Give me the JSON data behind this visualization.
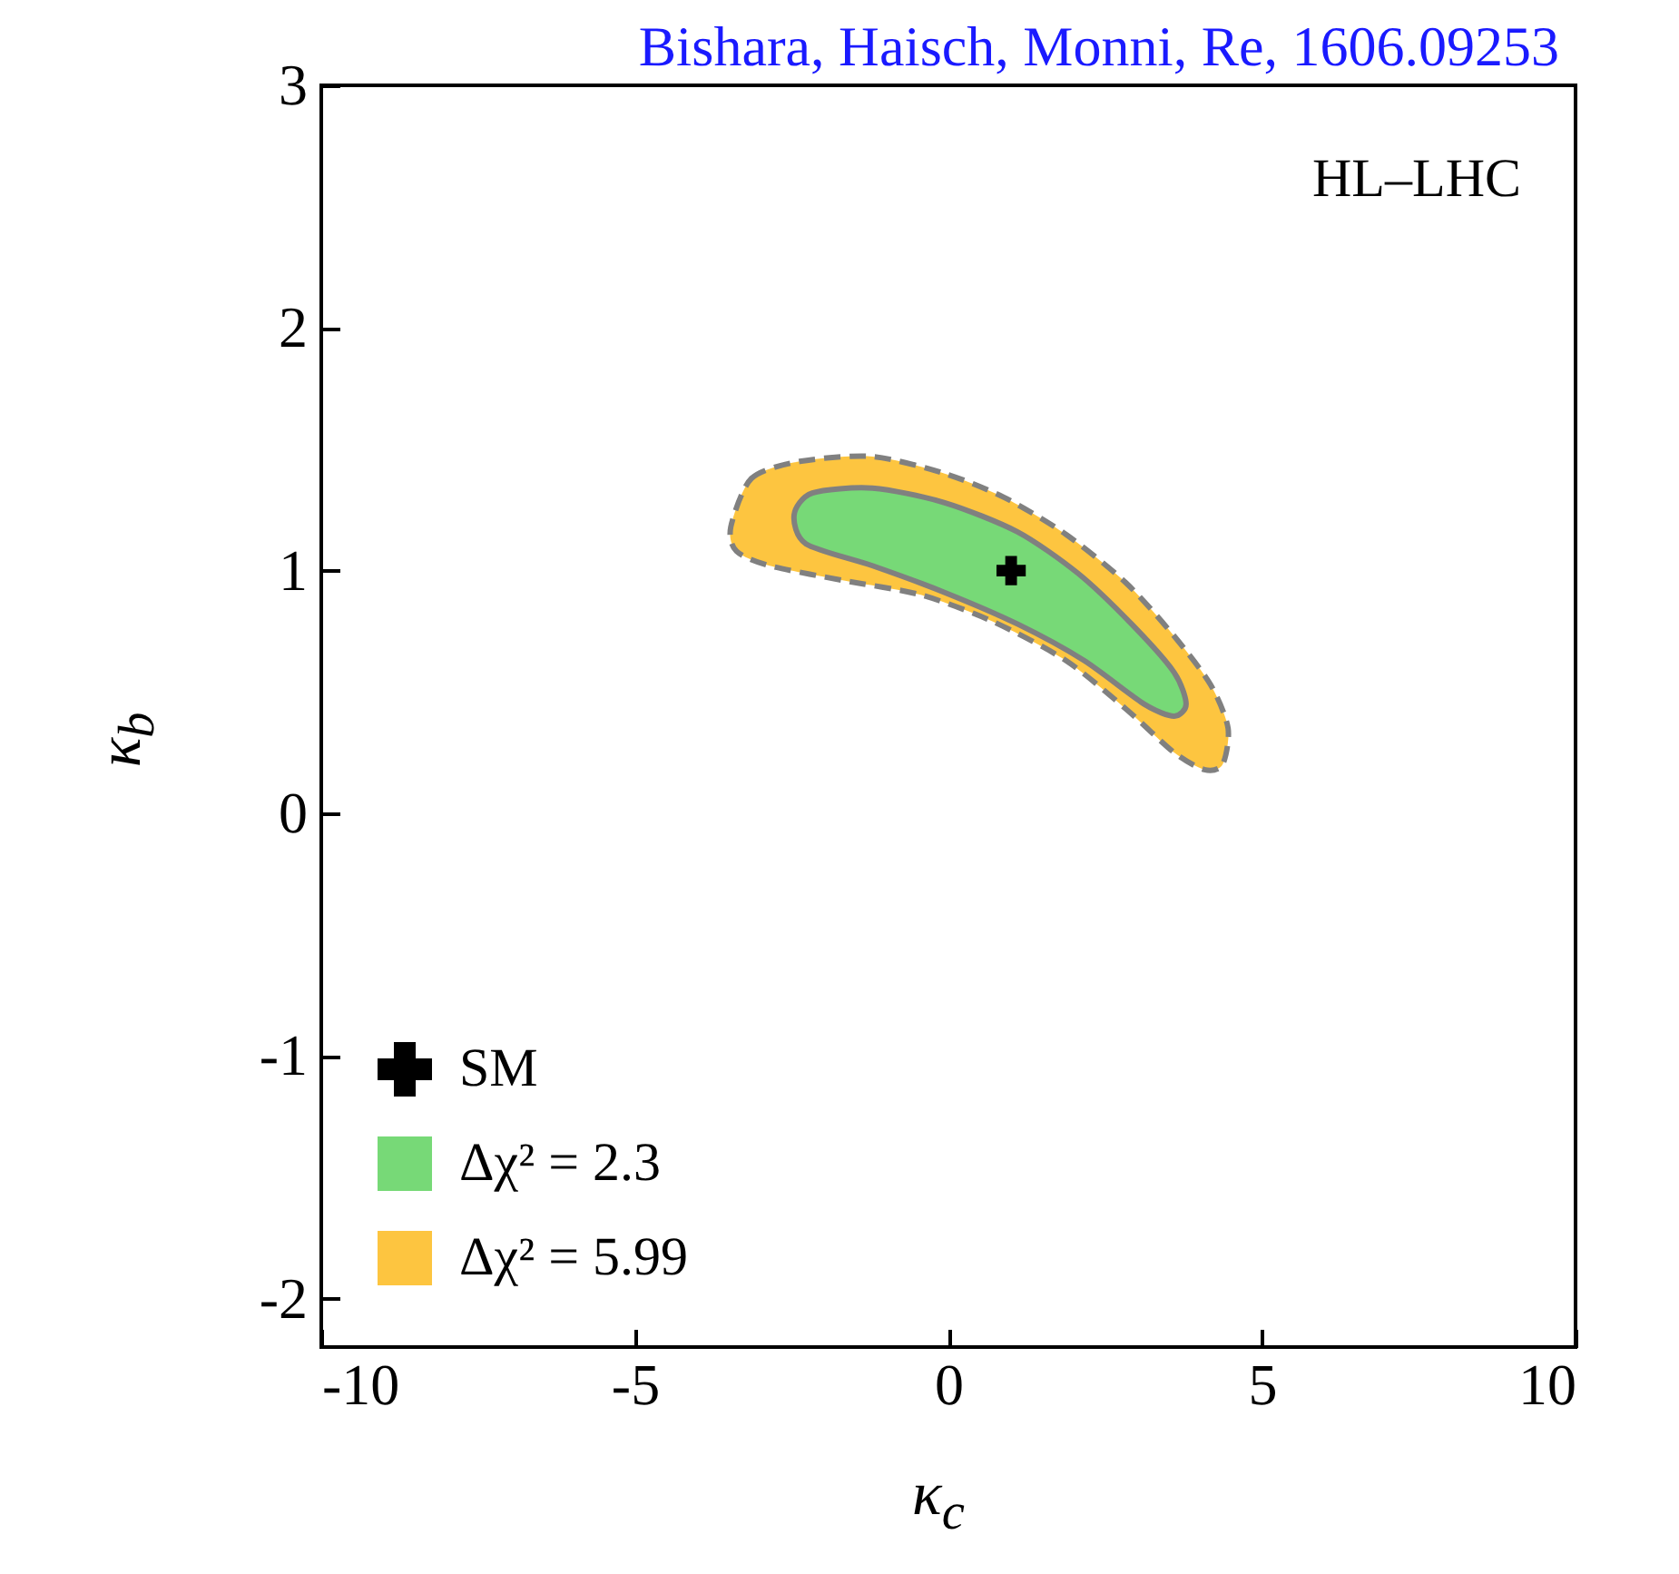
{
  "chart_data": {
    "type": "area",
    "xlabel": "κ$_{c}$",
    "ylabel": "κ$_{b}$",
    "annotations": [
      "HL–LHC",
      "Bishara, Haisch, Monni, Re, 1606.09253"
    ],
    "xlim": [
      -10,
      10
    ],
    "ylim": [
      -2.2,
      3
    ],
    "xticks": [
      -10,
      -5,
      0,
      5,
      10
    ],
    "yticks": [
      -2,
      -1,
      0,
      1,
      2,
      3
    ],
    "legend": "bottom left",
    "series": [
      {
        "name": "SM",
        "type": "scatter",
        "marker": "cross",
        "color": "#000000",
        "x": [
          1
        ],
        "values": [
          1
        ]
      },
      {
        "name": "Δχ² = 2.3",
        "line_style": "solid",
        "color": "#77d977",
        "x": [
          -2.46,
          -2.17,
          -1.21,
          -0.06,
          1.1,
          2.06,
          2.92,
          3.6,
          3.79,
          3.6,
          3.12,
          2.16,
          1.1,
          -0.06,
          -1.21,
          -2.27
        ],
        "values": [
          1.23,
          1.32,
          1.34,
          1.28,
          1.16,
          0.99,
          0.78,
          0.58,
          0.45,
          0.4,
          0.45,
          0.63,
          0.78,
          0.91,
          1.02,
          1.11
        ]
      },
      {
        "name": "Δχ² = 5.99",
        "line_style": "dashed",
        "color": "#fdc540",
        "x": [
          -3.47,
          -3.14,
          -2.37,
          -1.21,
          -0.06,
          0.9,
          1.87,
          2.83,
          3.6,
          4.18,
          4.46,
          4.37,
          4.08,
          3.6,
          2.83,
          1.87,
          0.71,
          -0.44,
          -1.69,
          -2.85,
          -3.38
        ],
        "values": [
          1.18,
          1.38,
          1.45,
          1.47,
          1.4,
          1.3,
          1.15,
          0.95,
          0.73,
          0.53,
          0.35,
          0.2,
          0.18,
          0.25,
          0.43,
          0.63,
          0.79,
          0.9,
          0.96,
          1.02,
          1.08
        ]
      }
    ]
  }
}
